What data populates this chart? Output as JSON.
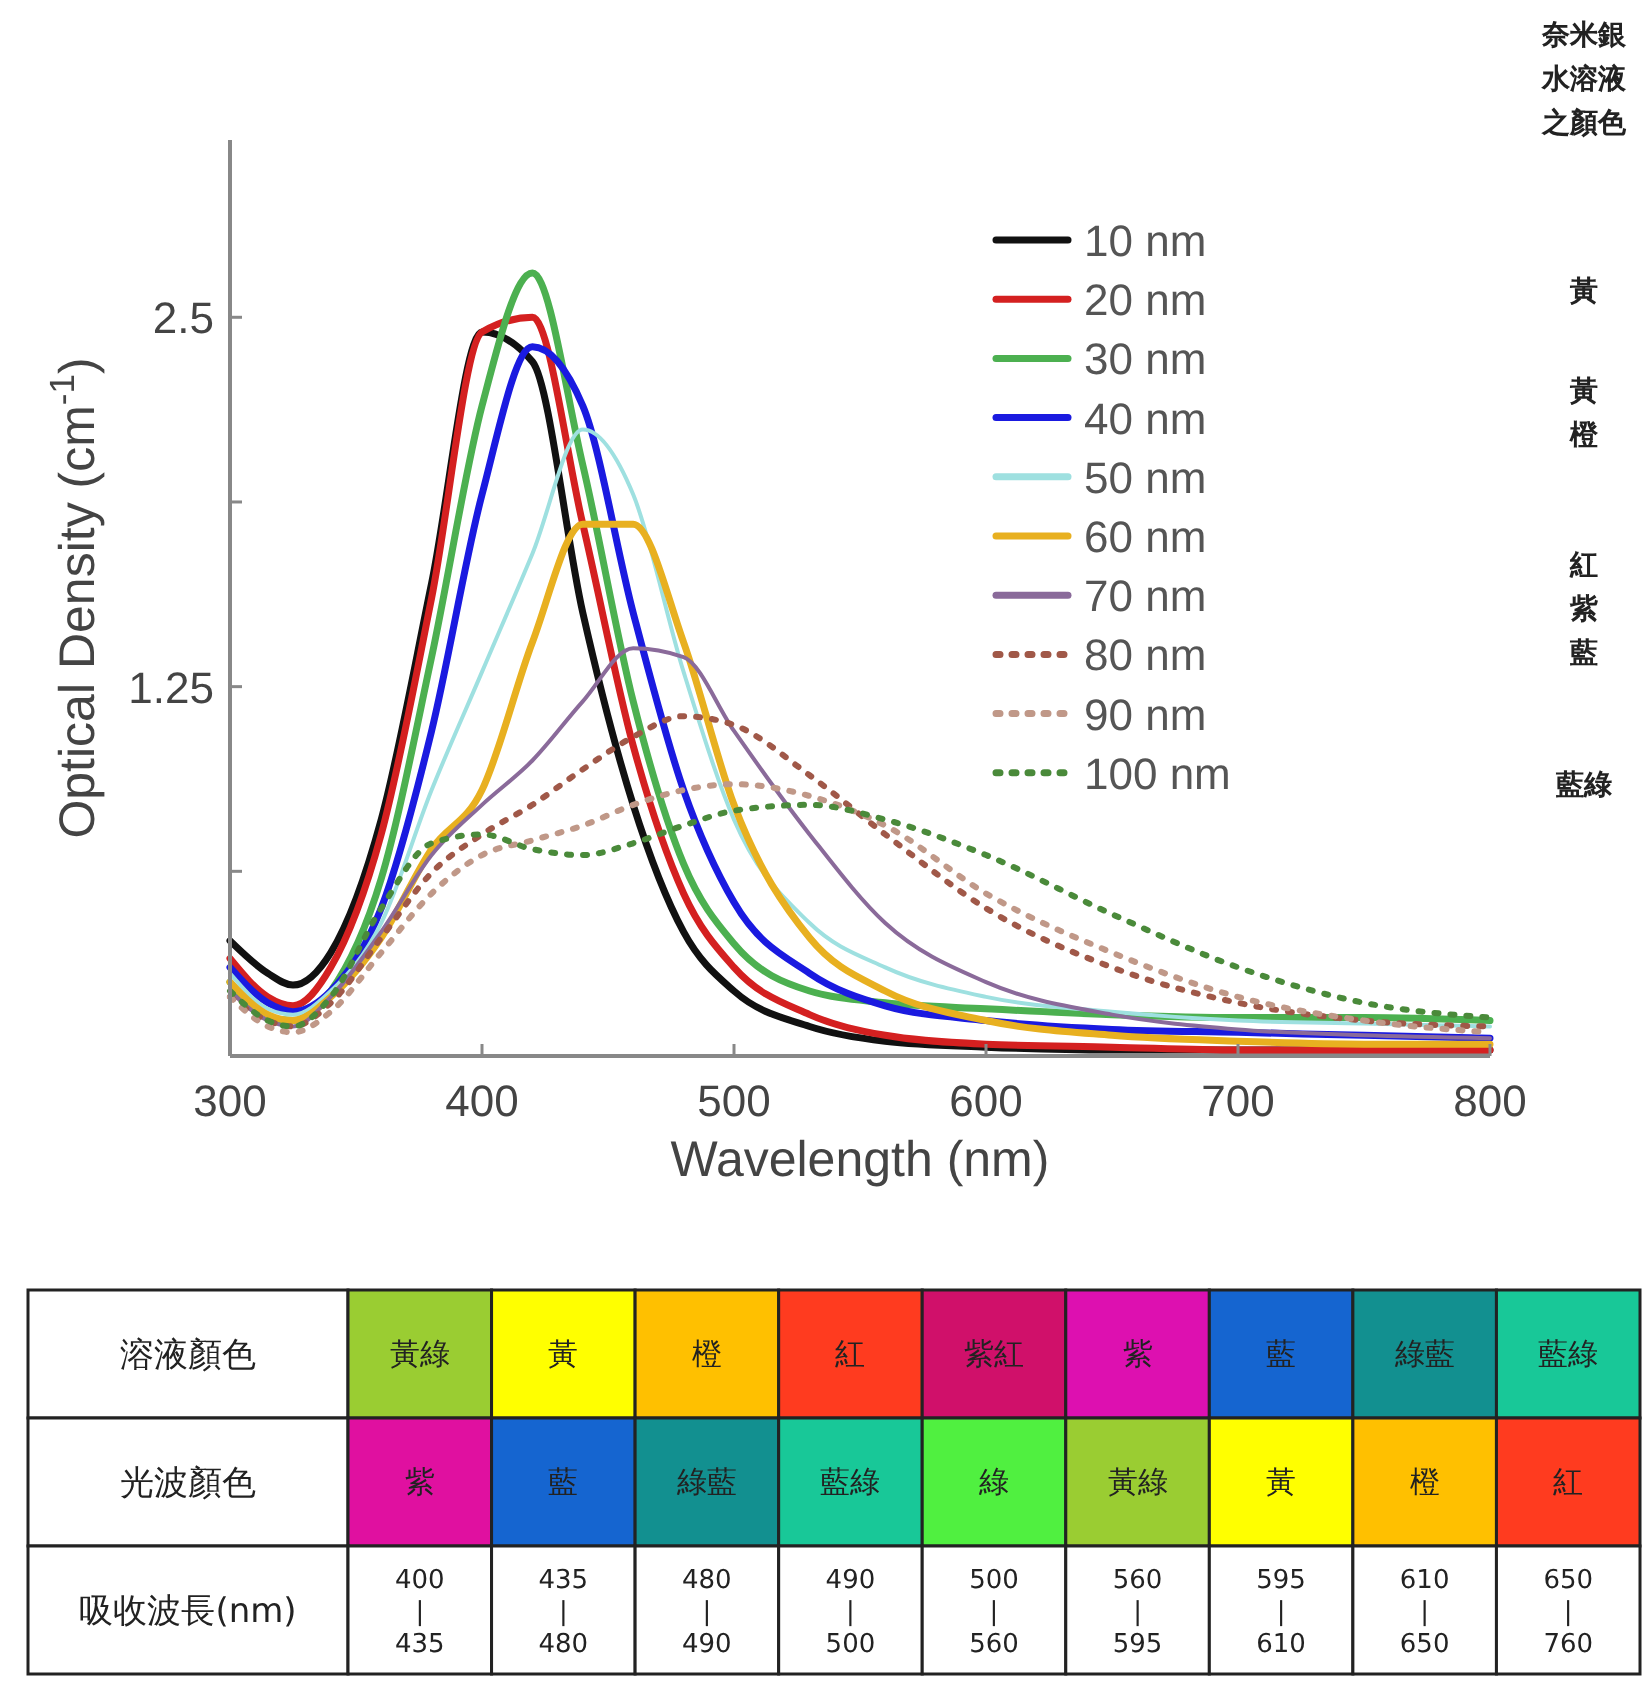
{
  "chart_data": [
    {
      "type": "line",
      "xlabel": "Wavelength (nm)",
      "ylabel": "Optical Density (cm$^{-1}$)",
      "x": [
        300,
        315,
        325,
        340,
        360,
        380,
        400,
        420,
        440,
        460,
        480,
        500,
        530,
        560,
        600,
        650,
        700,
        750,
        800
      ],
      "xlim": [
        300,
        800
      ],
      "xticks": [
        300,
        400,
        500,
        600,
        700,
        800
      ],
      "ylim": [
        0,
        3.1
      ],
      "yticks": [
        {
          "value": 0.625,
          "label": null
        },
        1.25,
        {
          "value": 1.875,
          "label": null
        },
        2.5
      ],
      "legend": "top right",
      "grid": false,
      "annotations": [
        "奈米銀水溶液之顏色",
        "黃",
        "黃橙",
        "紅紫藍",
        "藍綠"
      ],
      "series": [
        {
          "name": "10 nm",
          "color": "#111111",
          "line_style": "solid",
          "values": [
            0.39,
            0.28,
            0.24,
            0.35,
            0.8,
            1.6,
            2.45,
            2.35,
            1.5,
            0.85,
            0.42,
            0.22,
            0.1,
            0.05,
            0.03,
            0.02,
            0.02,
            0.02,
            0.02
          ]
        },
        {
          "name": "20 nm",
          "color": "#d42020",
          "line_style": "solid",
          "values": [
            0.33,
            0.2,
            0.17,
            0.3,
            0.75,
            1.55,
            2.45,
            2.5,
            1.8,
            1.05,
            0.55,
            0.3,
            0.14,
            0.07,
            0.04,
            0.03,
            0.02,
            0.02,
            0.02
          ]
        },
        {
          "name": "30 nm",
          "color": "#4cb050",
          "line_style": "solid",
          "values": [
            0.25,
            0.13,
            0.12,
            0.22,
            0.6,
            1.35,
            2.2,
            2.65,
            2.0,
            1.2,
            0.65,
            0.38,
            0.22,
            0.18,
            0.16,
            0.14,
            0.13,
            0.13,
            0.12
          ]
        },
        {
          "name": "40 nm",
          "color": "#1a1ae0",
          "line_style": "solid",
          "values": [
            0.3,
            0.18,
            0.15,
            0.22,
            0.5,
            1.1,
            1.9,
            2.4,
            2.2,
            1.5,
            0.9,
            0.52,
            0.28,
            0.17,
            0.12,
            0.09,
            0.08,
            0.07,
            0.06
          ]
        },
        {
          "name": "50 nm",
          "color": "#9ee0e0",
          "line_style": "solid",
          "values": [
            0.28,
            0.16,
            0.14,
            0.22,
            0.45,
            0.9,
            1.3,
            1.7,
            2.12,
            1.9,
            1.3,
            0.8,
            0.45,
            0.3,
            0.2,
            0.15,
            0.12,
            0.11,
            0.1
          ]
        },
        {
          "name": "60 nm",
          "color": "#e8b020",
          "line_style": "solid",
          "values": [
            0.25,
            0.14,
            0.12,
            0.2,
            0.4,
            0.7,
            0.9,
            1.4,
            1.8,
            1.8,
            1.4,
            0.85,
            0.4,
            0.22,
            0.12,
            0.07,
            0.05,
            0.04,
            0.04
          ]
        },
        {
          "name": "70 nm",
          "color": "#8a6a9a",
          "line_style": "solid",
          "values": [
            0.22,
            0.12,
            0.1,
            0.2,
            0.42,
            0.68,
            0.85,
            1.0,
            1.2,
            1.38,
            1.35,
            1.1,
            0.75,
            0.45,
            0.25,
            0.14,
            0.09,
            0.07,
            0.06
          ]
        },
        {
          "name": "80 nm",
          "color": "#a05848",
          "line_style": "dotted",
          "values": [
            0.2,
            0.12,
            0.1,
            0.18,
            0.4,
            0.62,
            0.75,
            0.85,
            0.97,
            1.08,
            1.15,
            1.12,
            0.95,
            0.75,
            0.5,
            0.3,
            0.18,
            0.12,
            0.1
          ]
        },
        {
          "name": "90 nm",
          "color": "#c09888",
          "line_style": "dotted",
          "values": [
            0.2,
            0.1,
            0.08,
            0.15,
            0.35,
            0.55,
            0.68,
            0.73,
            0.78,
            0.85,
            0.9,
            0.92,
            0.88,
            0.78,
            0.55,
            0.35,
            0.2,
            0.12,
            0.08
          ]
        },
        {
          "name": "100 nm",
          "color": "#4a8a3a",
          "line_style": "dotted",
          "values": [
            0.22,
            0.12,
            0.1,
            0.2,
            0.5,
            0.72,
            0.75,
            0.7,
            0.68,
            0.72,
            0.78,
            0.83,
            0.85,
            0.8,
            0.68,
            0.48,
            0.3,
            0.18,
            0.13
          ]
        }
      ]
    },
    {
      "type": "other",
      "y_categories": [
        "溶液顏色",
        "光波顏色",
        "吸收波長(nm)"
      ],
      "cell_labels": [
        [
          "黃綠",
          "黃",
          "橙",
          "紅",
          "紫紅",
          "紫",
          "藍",
          "綠藍",
          "藍綠"
        ],
        [
          "紫",
          "藍",
          "綠藍",
          "藍綠",
          "綠",
          "黃綠",
          "黃",
          "橙",
          "紅"
        ],
        [
          "400\n|\n435",
          "435\n|\n480",
          "480\n|\n490",
          "490\n|\n500",
          "500\n|\n560",
          "560\n|\n595",
          "595\n|\n610",
          "610\n|\n650",
          "650\n|\n760"
        ]
      ],
      "colors": [
        [
          "#9acd32",
          "#ffff00",
          "#ffc000",
          "#ff3b1f",
          "#d0106a",
          "#dd10b0",
          "#1565d0",
          "#129090",
          "#18c898"
        ],
        [
          "#e010a0",
          "#1565d0",
          "#129090",
          "#18c898",
          "#50f040",
          "#9acd32",
          "#ffff00",
          "#ffc000",
          "#ff3b1f"
        ],
        [
          null,
          null,
          null,
          null,
          null,
          null,
          null,
          null,
          null
        ]
      ]
    }
  ]
}
